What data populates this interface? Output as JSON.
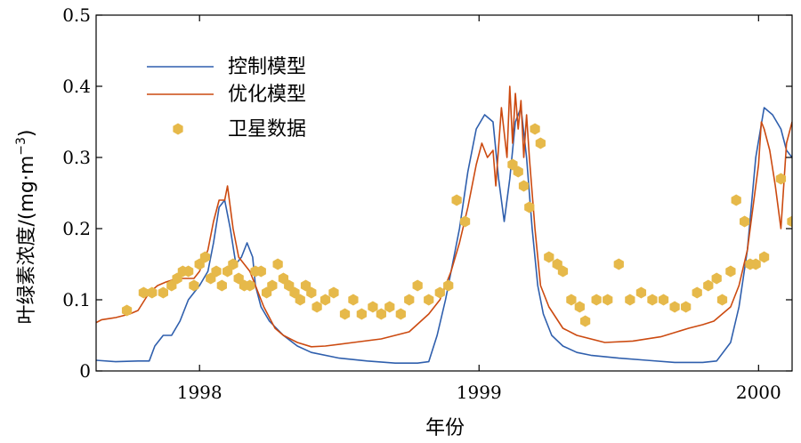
{
  "chart_data": {
    "type": "line",
    "title": "",
    "xlabel": "年份",
    "ylabel": "叶绿素浓度/(mg·m",
    "ylabel_sup": "−3",
    "ylabel_close": ")",
    "xlim": [
      1997.63,
      2000.12
    ],
    "ylim": [
      0,
      0.5
    ],
    "xticks": [
      1998,
      1999,
      2000
    ],
    "xtick_labels": [
      "1998",
      "1999",
      "2000"
    ],
    "yticks": [
      0,
      0.1,
      0.2,
      0.3,
      0.4,
      0.5
    ],
    "ytick_labels": [
      "0",
      "0.1",
      "0.2",
      "0.3",
      "0.4",
      "0.5"
    ],
    "grid": false,
    "legend_position": "top-left",
    "colors": {
      "control": "#2f5fad",
      "optimized": "#cc4a10",
      "satellite": "#e6b94a"
    },
    "series": [
      {
        "name": "控制模型",
        "style": "line",
        "x": [
          1997.63,
          1997.7,
          1997.78,
          1997.82,
          1997.84,
          1997.87,
          1997.9,
          1997.93,
          1997.96,
          1998.0,
          1998.03,
          1998.05,
          1998.07,
          1998.09,
          1998.11,
          1998.13,
          1998.15,
          1998.17,
          1998.19,
          1998.2,
          1998.22,
          1998.25,
          1998.3,
          1998.35,
          1998.4,
          1998.5,
          1998.6,
          1998.7,
          1998.78,
          1998.82,
          1998.85,
          1998.88,
          1998.9,
          1998.93,
          1998.96,
          1998.99,
          1999.02,
          1999.05,
          1999.07,
          1999.09,
          1999.11,
          1999.13,
          1999.15,
          1999.17,
          1999.19,
          1999.21,
          1999.23,
          1999.26,
          1999.3,
          1999.35,
          1999.4,
          1999.5,
          1999.6,
          1999.7,
          1999.8,
          1999.85,
          1999.9,
          1999.93,
          1999.96,
          1999.99,
          2000.02,
          2000.05,
          2000.08,
          2000.1,
          2000.12
        ],
        "y": [
          0.015,
          0.013,
          0.014,
          0.014,
          0.035,
          0.05,
          0.05,
          0.07,
          0.1,
          0.12,
          0.14,
          0.18,
          0.23,
          0.24,
          0.2,
          0.15,
          0.16,
          0.18,
          0.16,
          0.12,
          0.09,
          0.07,
          0.05,
          0.035,
          0.026,
          0.018,
          0.014,
          0.011,
          0.011,
          0.013,
          0.05,
          0.1,
          0.14,
          0.2,
          0.28,
          0.34,
          0.36,
          0.35,
          0.27,
          0.21,
          0.27,
          0.35,
          0.37,
          0.3,
          0.2,
          0.12,
          0.08,
          0.05,
          0.035,
          0.026,
          0.022,
          0.018,
          0.015,
          0.012,
          0.012,
          0.014,
          0.04,
          0.09,
          0.17,
          0.3,
          0.37,
          0.36,
          0.34,
          0.31,
          0.3
        ]
      },
      {
        "name": "优化模型",
        "style": "line",
        "x": [
          1997.63,
          1997.65,
          1997.7,
          1997.75,
          1997.78,
          1997.82,
          1997.85,
          1997.88,
          1997.92,
          1997.95,
          1997.98,
          1998.0,
          1998.03,
          1998.05,
          1998.07,
          1998.09,
          1998.1,
          1998.12,
          1998.14,
          1998.16,
          1998.18,
          1998.2,
          1998.23,
          1998.27,
          1998.3,
          1998.35,
          1998.4,
          1998.45,
          1998.55,
          1998.65,
          1998.75,
          1998.82,
          1998.86,
          1998.9,
          1998.93,
          1998.96,
          1998.99,
          1999.01,
          1999.03,
          1999.05,
          1999.06,
          1999.08,
          1999.1,
          1999.11,
          1999.12,
          1999.13,
          1999.14,
          1999.15,
          1999.16,
          1999.17,
          1999.18,
          1999.2,
          1999.22,
          1999.25,
          1999.3,
          1999.35,
          1999.45,
          1999.55,
          1999.65,
          1999.75,
          1999.8,
          1999.84,
          1999.87,
          1999.9,
          1999.93,
          1999.96,
          1999.98,
          2000.0,
          2000.01,
          2000.02,
          2000.04,
          2000.06,
          2000.08,
          2000.1,
          2000.12
        ],
        "y": [
          0.068,
          0.072,
          0.075,
          0.08,
          0.085,
          0.11,
          0.12,
          0.125,
          0.13,
          0.13,
          0.13,
          0.14,
          0.17,
          0.21,
          0.24,
          0.24,
          0.26,
          0.2,
          0.16,
          0.15,
          0.14,
          0.12,
          0.09,
          0.06,
          0.05,
          0.04,
          0.034,
          0.035,
          0.04,
          0.045,
          0.055,
          0.08,
          0.1,
          0.14,
          0.18,
          0.23,
          0.29,
          0.32,
          0.3,
          0.31,
          0.26,
          0.37,
          0.3,
          0.4,
          0.32,
          0.39,
          0.34,
          0.38,
          0.3,
          0.36,
          0.3,
          0.2,
          0.12,
          0.09,
          0.06,
          0.05,
          0.04,
          0.042,
          0.048,
          0.06,
          0.065,
          0.07,
          0.08,
          0.09,
          0.12,
          0.17,
          0.23,
          0.29,
          0.35,
          0.34,
          0.31,
          0.26,
          0.2,
          0.32,
          0.35
        ]
      },
      {
        "name": "卫星数据",
        "style": "marker",
        "x": [
          1997.74,
          1997.8,
          1997.83,
          1997.87,
          1997.9,
          1997.92,
          1997.94,
          1997.96,
          1997.98,
          1998.0,
          1998.02,
          1998.04,
          1998.06,
          1998.08,
          1998.1,
          1998.12,
          1998.14,
          1998.16,
          1998.18,
          1998.2,
          1998.22,
          1998.24,
          1998.26,
          1998.28,
          1998.3,
          1998.32,
          1998.34,
          1998.36,
          1998.38,
          1998.4,
          1998.42,
          1998.45,
          1998.48,
          1998.52,
          1998.55,
          1998.58,
          1998.62,
          1998.65,
          1998.68,
          1998.72,
          1998.75,
          1998.78,
          1998.82,
          1998.86,
          1998.89,
          1998.92,
          1998.95,
          1999.12,
          1999.14,
          1999.16,
          1999.18,
          1999.2,
          1999.22,
          1999.25,
          1999.28,
          1999.3,
          1999.33,
          1999.36,
          1999.38,
          1999.42,
          1999.46,
          1999.5,
          1999.54,
          1999.58,
          1999.62,
          1999.66,
          1999.7,
          1999.74,
          1999.78,
          1999.82,
          1999.85,
          1999.87,
          1999.9,
          1999.92,
          1999.95,
          1999.97,
          1999.99,
          2000.02,
          2000.08,
          2000.12
        ],
        "y": [
          0.085,
          0.11,
          0.11,
          0.11,
          0.12,
          0.13,
          0.14,
          0.14,
          0.12,
          0.15,
          0.16,
          0.13,
          0.14,
          0.12,
          0.14,
          0.15,
          0.13,
          0.12,
          0.12,
          0.14,
          0.14,
          0.11,
          0.12,
          0.15,
          0.13,
          0.12,
          0.11,
          0.1,
          0.12,
          0.11,
          0.09,
          0.1,
          0.11,
          0.08,
          0.1,
          0.08,
          0.09,
          0.08,
          0.09,
          0.08,
          0.1,
          0.12,
          0.1,
          0.11,
          0.12,
          0.24,
          0.21,
          0.29,
          0.28,
          0.26,
          0.23,
          0.34,
          0.32,
          0.16,
          0.15,
          0.14,
          0.1,
          0.09,
          0.07,
          0.1,
          0.1,
          0.15,
          0.1,
          0.11,
          0.1,
          0.1,
          0.09,
          0.09,
          0.11,
          0.12,
          0.13,
          0.1,
          0.14,
          0.24,
          0.21,
          0.15,
          0.15,
          0.16,
          0.27,
          0.21
        ]
      }
    ]
  }
}
